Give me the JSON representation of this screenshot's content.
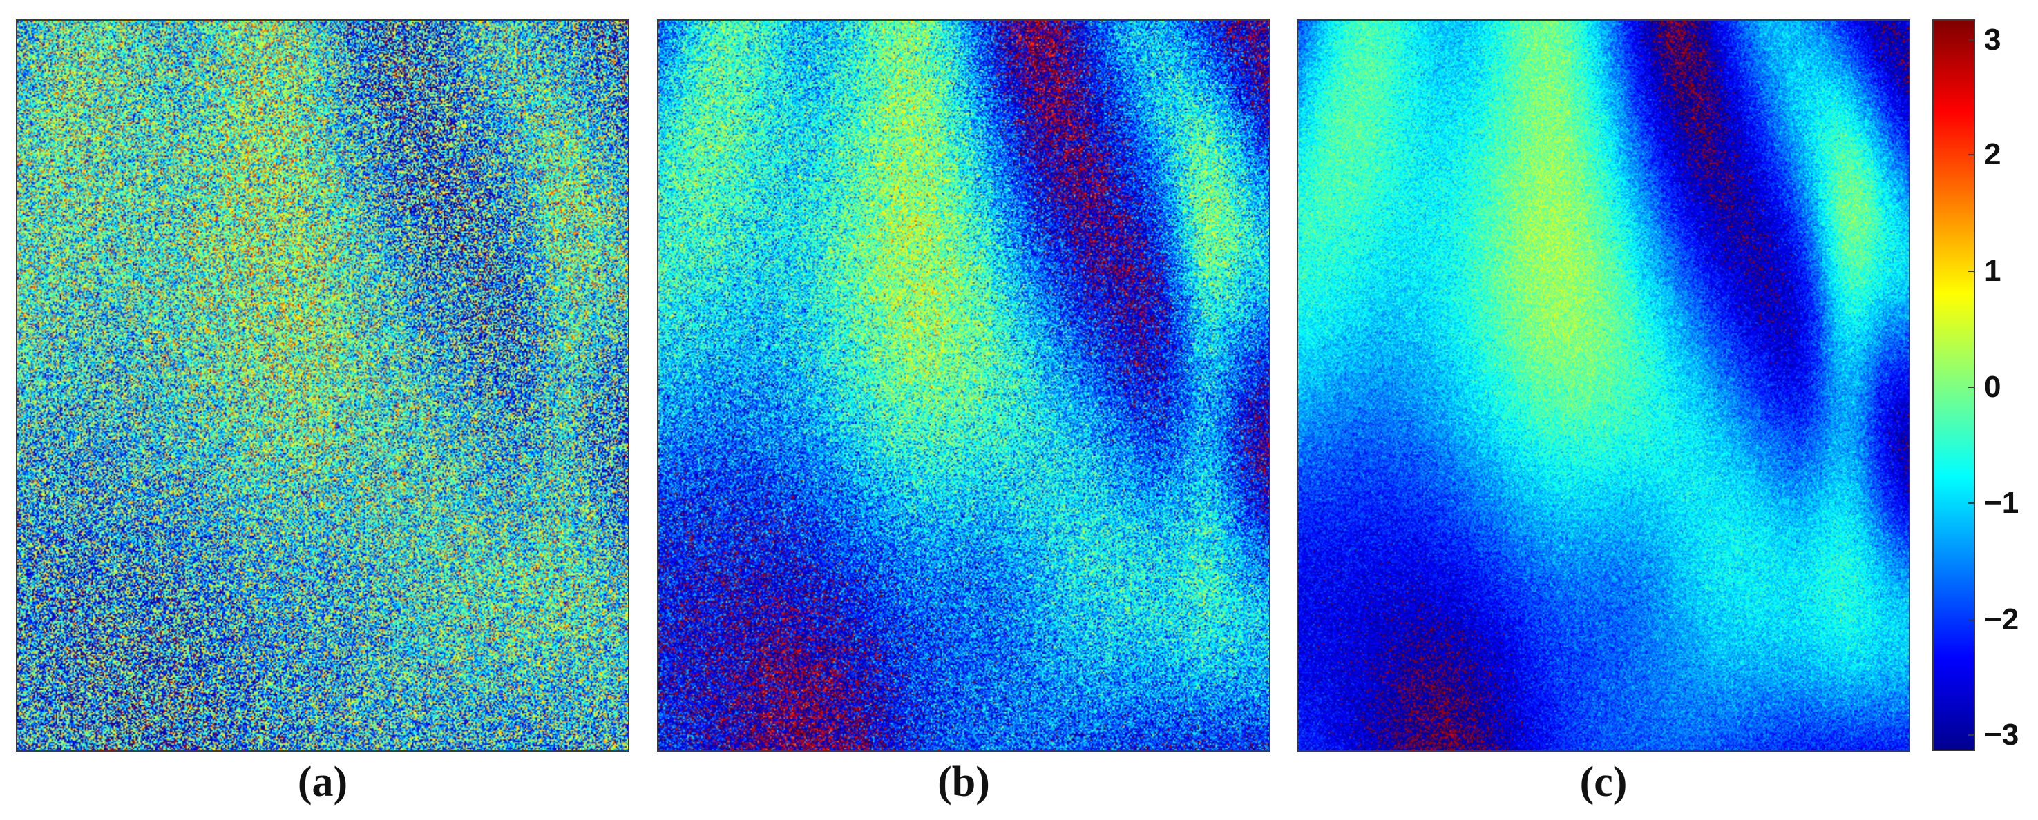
{
  "panels": [
    {
      "id": "a",
      "label": "(a)",
      "content": "noisy interferometric phase map"
    },
    {
      "id": "b",
      "label": "(b)",
      "content": "filtered interferometric phase map"
    },
    {
      "id": "c",
      "label": "(c)",
      "content": "filtered interferometric phase map"
    }
  ],
  "colorbar": {
    "colormap": "jet",
    "min": -3.14,
    "max": 3.14,
    "ticks": [
      {
        "value": 3,
        "label": "3"
      },
      {
        "value": 2,
        "label": "2"
      },
      {
        "value": 1,
        "label": "1"
      },
      {
        "value": 0,
        "label": "0"
      },
      {
        "value": -1,
        "label": "−1"
      },
      {
        "value": -2,
        "label": "−2"
      },
      {
        "value": -3,
        "label": "−3"
      }
    ]
  }
}
